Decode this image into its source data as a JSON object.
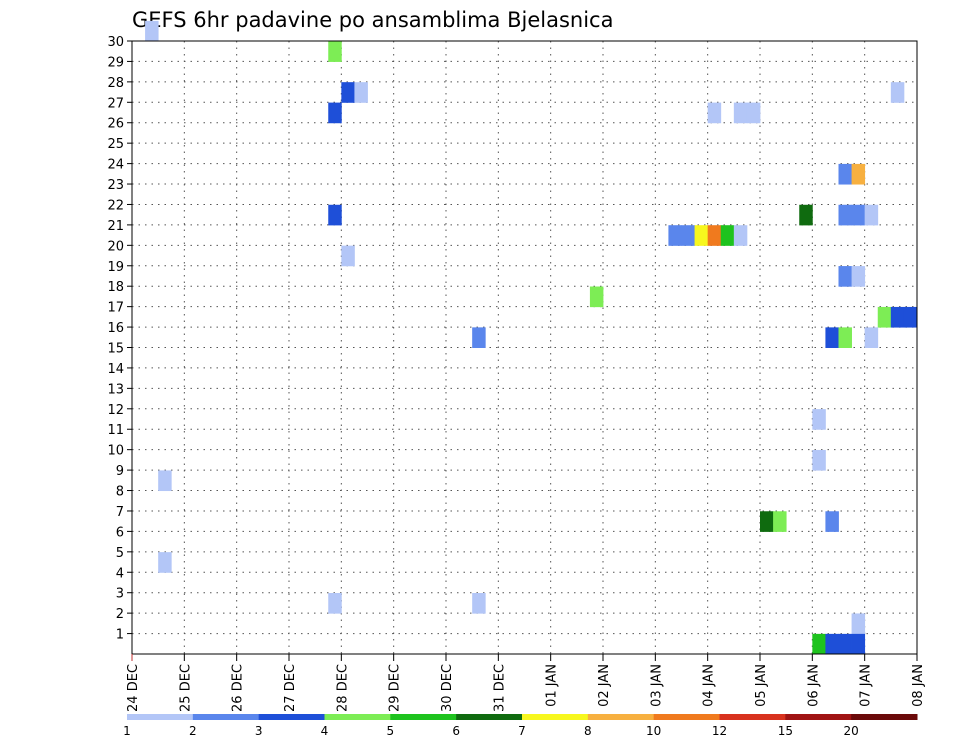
{
  "chart_data": {
    "type": "heatmap",
    "title": "GEFS 6hr padavine po ansamblima Bjelasnica",
    "xlabel": "",
    "ylabel": "",
    "x_tick_labels": [
      "24 DEC",
      "25 DEC",
      "26 DEC",
      "27 DEC",
      "28 DEC",
      "29 DEC",
      "30 DEC",
      "31 DEC",
      "01 JAN",
      "02 JAN",
      "03 JAN",
      "04 JAN",
      "05 JAN",
      "06 JAN",
      "07 JAN",
      "08 JAN"
    ],
    "y_tick_labels": [
      "1",
      "2",
      "3",
      "4",
      "5",
      "6",
      "7",
      "8",
      "9",
      "10",
      "11",
      "12",
      "13",
      "14",
      "15",
      "16",
      "17",
      "18",
      "19",
      "20",
      "21",
      "22",
      "23",
      "24",
      "25",
      "26",
      "27",
      "28",
      "29",
      "30"
    ],
    "xlim_steps": [
      0,
      60
    ],
    "ylim_members": [
      0,
      30
    ],
    "grid": true,
    "colorbar": {
      "placement": "bottom",
      "colors": [
        "#b3c6f7",
        "#5a86ec",
        "#1e4fd8",
        "#7ded55",
        "#1ec31e",
        "#0f6b0f",
        "#f7f71e",
        "#f7b040",
        "#f07a1e",
        "#d8321e",
        "#a01414",
        "#6b0a0a"
      ],
      "labels": [
        "1",
        "2",
        "3",
        "4",
        "5",
        "6",
        "7",
        "8",
        "10",
        "12",
        "15",
        "20"
      ]
    },
    "cells": [
      {
        "t": 1,
        "m": 30,
        "c": 0
      },
      {
        "t": 2,
        "m": 8,
        "c": 0
      },
      {
        "t": 2,
        "m": 4,
        "c": 0
      },
      {
        "t": 15,
        "m": 29,
        "c": 3
      },
      {
        "t": 15,
        "m": 26,
        "c": 2
      },
      {
        "t": 15,
        "m": 21,
        "c": 2
      },
      {
        "t": 15,
        "m": 2,
        "c": 0
      },
      {
        "t": 16,
        "m": 27,
        "c": 2
      },
      {
        "t": 16,
        "m": 19,
        "c": 0
      },
      {
        "t": 17,
        "m": 27,
        "c": 0
      },
      {
        "t": 26,
        "m": 15,
        "c": 1
      },
      {
        "t": 26,
        "m": 2,
        "c": 0
      },
      {
        "t": 35,
        "m": 17,
        "c": 3
      },
      {
        "t": 41,
        "m": 20,
        "c": 1
      },
      {
        "t": 42,
        "m": 20,
        "c": 1
      },
      {
        "t": 43,
        "m": 20,
        "c": 6
      },
      {
        "t": 44,
        "m": 20,
        "c": 8
      },
      {
        "t": 44,
        "m": 26,
        "c": 0
      },
      {
        "t": 45,
        "m": 20,
        "c": 4
      },
      {
        "t": 46,
        "m": 20,
        "c": 0
      },
      {
        "t": 46,
        "m": 26,
        "c": 0
      },
      {
        "t": 47,
        "m": 26,
        "c": 0
      },
      {
        "t": 48,
        "m": 6,
        "c": 5
      },
      {
        "t": 49,
        "m": 6,
        "c": 3
      },
      {
        "t": 51,
        "m": 21,
        "c": 5
      },
      {
        "t": 52,
        "m": 11,
        "c": 0
      },
      {
        "t": 52,
        "m": 9,
        "c": 0
      },
      {
        "t": 52,
        "m": 0,
        "c": 4
      },
      {
        "t": 53,
        "m": 15,
        "c": 2
      },
      {
        "t": 53,
        "m": 6,
        "c": 1
      },
      {
        "t": 53,
        "m": 0,
        "c": 2
      },
      {
        "t": 54,
        "m": 23,
        "c": 1
      },
      {
        "t": 54,
        "m": 21,
        "c": 1
      },
      {
        "t": 54,
        "m": 18,
        "c": 1
      },
      {
        "t": 54,
        "m": 15,
        "c": 3
      },
      {
        "t": 54,
        "m": 0,
        "c": 2
      },
      {
        "t": 55,
        "m": 23,
        "c": 7
      },
      {
        "t": 55,
        "m": 21,
        "c": 1
      },
      {
        "t": 55,
        "m": 18,
        "c": 0
      },
      {
        "t": 55,
        "m": 1,
        "c": 0
      },
      {
        "t": 55,
        "m": 0,
        "c": 2
      },
      {
        "t": 56,
        "m": 21,
        "c": 0
      },
      {
        "t": 56,
        "m": 15,
        "c": 0
      },
      {
        "t": 57,
        "m": 16,
        "c": 3
      },
      {
        "t": 58,
        "m": 27,
        "c": 0
      },
      {
        "t": 58,
        "m": 16,
        "c": 2
      },
      {
        "t": 59,
        "m": 16,
        "c": 2
      }
    ]
  }
}
